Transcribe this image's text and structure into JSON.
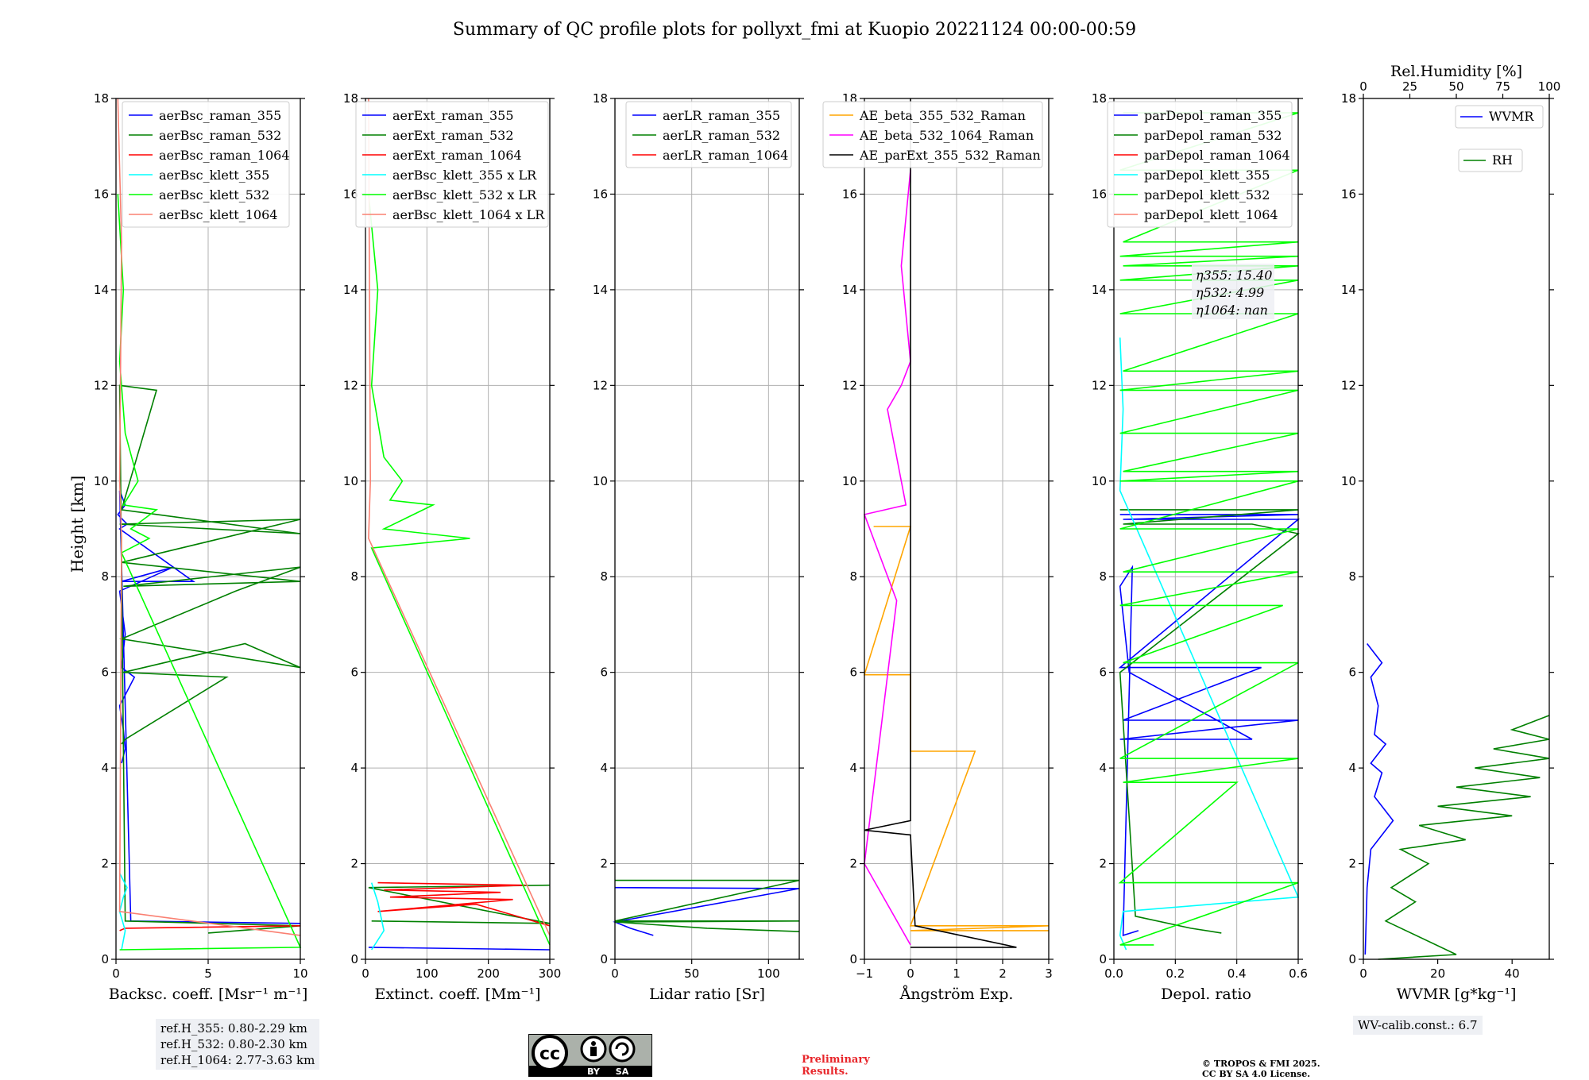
{
  "title": "Summary of QC profile plots for pollyxt_fmi at Kuopio 20221124 00:00-00:59",
  "y_axis": {
    "label": "Height [km]",
    "ticks": [
      "0",
      "2",
      "4",
      "6",
      "8",
      "10",
      "12",
      "14",
      "16",
      "18"
    ]
  },
  "notes": {
    "ref_h": [
      "ref.H_355: 0.80-2.29 km",
      "ref.H_532: 0.80-2.30 km",
      "ref.H_1064: 2.77-3.63 km"
    ],
    "wv_calib": "WV-calib.const.: 6.7",
    "eta": [
      "η355: 15.40",
      "η532: 4.99",
      "η1064: nan"
    ],
    "preliminary": [
      "Preliminary",
      "Results."
    ],
    "copyright": [
      "© TROPOS & FMI 2025.",
      "CC BY SA 4.0 License."
    ],
    "cc_badge": [
      "BY",
      "SA"
    ]
  },
  "colors": {
    "blue": "#0000ff",
    "green": "#008000",
    "red": "#ff0000",
    "cyan": "#00ffff",
    "lime": "#00ff00",
    "salmon": "#fa8072",
    "orange": "#ffa500",
    "magenta": "#ff00ff",
    "black": "#000000"
  },
  "chart_data": [
    {
      "type": "line",
      "id": "bsc",
      "xlabel": "Backsc. coeff. [Msr⁻¹ m⁻¹]",
      "xlim": [
        0,
        10
      ],
      "ylim": [
        0,
        18
      ],
      "grid": true,
      "xticks": [
        "0",
        "5",
        "10"
      ],
      "legend": [
        "aerBsc_raman_355",
        "aerBsc_raman_532",
        "aerBsc_raman_1064",
        "aerBsc_klett_355",
        "aerBsc_klett_532",
        "aerBsc_klett_1064"
      ],
      "series": [
        {
          "name": "aerBsc_raman_355",
          "color": "blue",
          "x": [
            0.3,
            0.5,
            0.4,
            0.2,
            1.0,
            0.3,
            0.5,
            0.2,
            3.1,
            0.3,
            4.2,
            0.2,
            0.6,
            0.1,
            0.5,
            0.2,
            0.8,
            10
          ],
          "y": [
            4.1,
            4.4,
            4.8,
            5.3,
            5.9,
            6.1,
            6.8,
            7.7,
            8.2,
            7.9,
            7.9,
            9.0,
            9.1,
            9.3,
            9.5,
            9.8,
            0.8,
            0.75
          ]
        },
        {
          "name": "aerBsc_raman_532",
          "color": "green",
          "x": [
            0.3,
            0.5,
            6.0,
            0.4,
            7.0,
            10,
            0.3,
            6.5,
            10,
            0.4,
            10,
            0.3,
            10,
            0.2,
            10,
            0.3,
            2.2,
            0.2,
            0.5,
            10,
            5.0
          ],
          "y": [
            4.5,
            4.6,
            5.9,
            6.0,
            6.6,
            6.1,
            6.7,
            7.7,
            8.2,
            7.8,
            7.9,
            8.3,
            9.2,
            9.1,
            8.9,
            9.4,
            11.9,
            12.0,
            0.8,
            0.7,
            0.55
          ]
        },
        {
          "name": "aerBsc_raman_1064",
          "color": "red",
          "x": [
            0.2,
            0.5,
            10
          ],
          "y": [
            0.6,
            0.65,
            0.7
          ]
        },
        {
          "name": "aerBsc_klett_355",
          "color": "cyan",
          "x": [
            0.3,
            0.5,
            0.2,
            0.4,
            0.6,
            0.2
          ],
          "y": [
            0.2,
            0.6,
            1.0,
            1.3,
            1.5,
            1.8
          ]
        },
        {
          "name": "aerBsc_klett_532",
          "color": "lime",
          "x": [
            0.1,
            0.4,
            0.2,
            0.5,
            1.2,
            0.4,
            2.2,
            0.8,
            1.8,
            0.3,
            10,
            0.2
          ],
          "y": [
            16.0,
            14.0,
            12.5,
            11.0,
            10.0,
            9.5,
            9.4,
            9.0,
            8.8,
            8.5,
            0.25,
            0.2
          ]
        },
        {
          "name": "aerBsc_klett_1064",
          "color": "salmon",
          "x": [
            0.1,
            0.3,
            0.2,
            0.3,
            0.2,
            10
          ],
          "y": [
            18,
            15.0,
            10.0,
            8.8,
            1.0,
            0.5
          ]
        }
      ]
    },
    {
      "type": "line",
      "id": "ext",
      "xlabel": "Extinct. coeff. [Mm⁻¹]",
      "xlim": [
        0,
        300
      ],
      "ylim": [
        0,
        18
      ],
      "grid": true,
      "xticks": [
        "0",
        "100",
        "200",
        "300"
      ],
      "legend": [
        "aerExt_raman_355",
        "aerExt_raman_532",
        "aerExt_raman_1064",
        "aerBsc_klett_355 x LR",
        "aerBsc_klett_532 x LR",
        "aerBsc_klett_1064 x LR"
      ],
      "series": [
        {
          "name": "aerExt_raman_355",
          "color": "blue",
          "x": [
            5,
            300
          ],
          "y": [
            0.25,
            0.2
          ]
        },
        {
          "name": "aerExt_raman_532",
          "color": "green",
          "x": [
            10,
            300,
            5,
            300
          ],
          "y": [
            0.8,
            0.75,
            1.5,
            1.55
          ]
        },
        {
          "name": "aerExt_raman_1064",
          "color": "red",
          "x": [
            20,
            260,
            30,
            220,
            40,
            240,
            20,
            180,
            300
          ],
          "y": [
            1.6,
            1.55,
            1.45,
            1.4,
            1.3,
            1.25,
            1.0,
            1.15,
            0.7
          ]
        },
        {
          "name": "aerBsc_klett_355 x LR",
          "color": "cyan",
          "x": [
            10,
            30,
            20,
            10
          ],
          "y": [
            0.2,
            0.6,
            1.2,
            1.6
          ]
        },
        {
          "name": "aerBsc_klett_532 x LR",
          "color": "lime",
          "x": [
            5,
            20,
            10,
            30,
            60,
            40,
            110,
            30,
            170,
            10,
            300
          ],
          "y": [
            16,
            14,
            12,
            10.5,
            10,
            9.6,
            9.5,
            9.0,
            8.8,
            8.6,
            0.3
          ]
        },
        {
          "name": "aerBsc_klett_1064 x LR",
          "color": "salmon",
          "x": [
            5,
            8,
            5,
            300
          ],
          "y": [
            18,
            10,
            8.8,
            0.5
          ]
        }
      ]
    },
    {
      "type": "line",
      "id": "lr",
      "xlabel": "Lidar ratio [Sr]",
      "xlim": [
        0,
        120
      ],
      "ylim": [
        0,
        18
      ],
      "grid": true,
      "xticks": [
        "0",
        "50",
        "100"
      ],
      "legend": [
        "aerLR_raman_355",
        "aerLR_raman_532",
        "aerLR_raman_1064"
      ],
      "series": [
        {
          "name": "aerLR_raman_355",
          "color": "blue",
          "x": [
            0,
            120,
            0,
            10,
            20,
            25
          ],
          "y": [
            1.5,
            1.48,
            0.78,
            0.65,
            0.55,
            0.5
          ]
        },
        {
          "name": "aerLR_raman_532",
          "color": "green",
          "x": [
            0,
            120,
            0,
            120,
            0,
            60,
            120
          ],
          "y": [
            1.65,
            1.65,
            0.8,
            0.8,
            0.78,
            0.65,
            0.58
          ]
        },
        {
          "name": "aerLR_raman_1064",
          "color": "red",
          "x": [],
          "y": []
        }
      ]
    },
    {
      "type": "line",
      "id": "ae",
      "xlabel": "Ångström Exp.",
      "xlim": [
        -1,
        3
      ],
      "ylim": [
        0,
        18
      ],
      "grid": true,
      "xticks": [
        "−1",
        "0",
        "1",
        "2",
        "3"
      ],
      "legend": [
        "AE_beta_355_532_Raman",
        "AE_beta_532_1064_Raman",
        "AE_parExt_355_532_Raman"
      ],
      "series": [
        {
          "name": "AE_beta_355_532_Raman",
          "color": "orange",
          "x": [
            -0.8,
            0,
            -1,
            0,
            0,
            1.4,
            0,
            3,
            0,
            3
          ],
          "y": [
            9.05,
            9.05,
            5.95,
            5.95,
            4.35,
            4.35,
            0.7,
            0.7,
            0.6,
            0.6
          ]
        },
        {
          "name": "AE_beta_532_1064_Raman",
          "color": "magenta",
          "x": [
            0,
            -0.2,
            0,
            -0.2,
            -0.5,
            -0.1,
            -1,
            -0.3,
            -1,
            0
          ],
          "y": [
            16.5,
            14.5,
            12.5,
            12.0,
            11.5,
            9.5,
            9.3,
            7.5,
            2.0,
            0.3
          ]
        },
        {
          "name": "AE_parExt_355_532_Raman",
          "color": "black",
          "x": [
            0,
            0,
            0,
            -1,
            0,
            0.1,
            2.3,
            0
          ],
          "y": [
            18,
            10.5,
            2.9,
            2.7,
            2.6,
            0.7,
            0.25,
            0.25
          ]
        }
      ]
    },
    {
      "type": "line",
      "id": "depol",
      "xlabel": "Depol. ratio",
      "xlim": [
        0.0,
        0.6
      ],
      "ylim": [
        0,
        18
      ],
      "grid": true,
      "xticks": [
        "0.0",
        "0.2",
        "0.4",
        "0.6"
      ],
      "legend": [
        "parDepol_raman_355",
        "parDepol_raman_532",
        "parDepol_raman_1064",
        "parDepol_klett_355",
        "parDepol_klett_532",
        "parDepol_klett_1064"
      ],
      "series": [
        {
          "name": "parDepol_raman_355",
          "color": "blue",
          "x": [
            0.02,
            0.6,
            0.03,
            0.6,
            0.02,
            0.48,
            0.03,
            0.6,
            0.02,
            0.45,
            0.05,
            0.02,
            0.06,
            0.03,
            0.08
          ],
          "y": [
            9.3,
            9.3,
            9.2,
            9.2,
            6.1,
            6.1,
            5.0,
            5.0,
            4.6,
            4.6,
            6.0,
            7.8,
            8.2,
            0.5,
            0.6
          ]
        },
        {
          "name": "parDepol_raman_532",
          "color": "green",
          "x": [
            0.02,
            0.6,
            0.03,
            0.45,
            0.6,
            0.02,
            0.07,
            0.25,
            0.35
          ],
          "y": [
            9.4,
            9.4,
            9.1,
            9.1,
            8.9,
            6.0,
            0.9,
            0.65,
            0.55
          ]
        },
        {
          "name": "parDepol_raman_1064",
          "color": "red",
          "x": [],
          "y": []
        },
        {
          "name": "parDepol_klett_355",
          "color": "cyan",
          "x": [
            0.02,
            0.03,
            0.02,
            0.6,
            0.03,
            0.02,
            0.04
          ],
          "y": [
            13.0,
            11.5,
            9.8,
            1.3,
            1.0,
            0.5,
            0.2
          ]
        },
        {
          "name": "parDepol_klett_532",
          "color": "lime",
          "x": [
            0.03,
            0.6,
            0.02,
            0.6,
            0.03,
            0.6,
            0.02,
            0.6,
            0.03,
            0.6,
            0.02,
            0.6,
            0.02,
            0.6,
            0.03,
            0.6,
            0.02,
            0.6,
            0.02,
            0.6,
            0.03,
            0.6,
            0.02,
            0.6,
            0.02,
            0.6,
            0.03,
            0.6,
            0.02,
            0.55,
            0.03,
            0.6,
            0.02,
            0.6,
            0.03,
            0.4,
            0.02,
            0.6,
            0.02,
            0.13
          ],
          "y": [
            17.7,
            17.7,
            16.5,
            16.5,
            15.0,
            15.0,
            14.7,
            14.7,
            14.5,
            14.5,
            14.2,
            14.2,
            13.5,
            13.5,
            12.3,
            12.3,
            11.9,
            11.9,
            11.0,
            11.0,
            10.2,
            10.2,
            10.0,
            10.0,
            9.0,
            9.0,
            8.1,
            8.1,
            7.4,
            7.4,
            6.2,
            6.2,
            4.2,
            4.2,
            3.7,
            3.7,
            1.6,
            1.6,
            0.3,
            0.3
          ]
        },
        {
          "name": "parDepol_klett_1064",
          "color": "salmon",
          "x": [],
          "y": []
        }
      ]
    },
    {
      "type": "line",
      "id": "wvmr",
      "xlabel": "WVMR [g*kg⁻¹]",
      "xlim": [
        0,
        50
      ],
      "ylim": [
        0,
        18
      ],
      "grid": false,
      "xticks": [
        "0",
        "20",
        "40"
      ],
      "top_axis": {
        "label": "Rel.Humidity [%]",
        "lim": [
          0,
          100
        ],
        "ticks": [
          "0",
          "25",
          "50",
          "75",
          "100"
        ]
      },
      "legend": [
        "WVMR",
        "RH"
      ],
      "series": [
        {
          "name": "WVMR",
          "color": "blue",
          "x": [
            1,
            3,
            5,
            2,
            4,
            3,
            6,
            2,
            5,
            3,
            8,
            2,
            1,
            0.5
          ],
          "y": [
            6.6,
            6.4,
            6.2,
            5.9,
            5.3,
            4.7,
            4.5,
            4.1,
            3.9,
            3.4,
            2.9,
            2.3,
            1.5,
            0.1
          ]
        },
        {
          "name": "RH",
          "color": "green",
          "x": [
            100,
            80,
            100,
            70,
            100,
            60,
            95,
            50,
            90,
            40,
            80,
            30,
            55,
            20,
            35,
            15,
            28,
            12,
            50,
            8
          ],
          "y": [
            5.1,
            4.8,
            4.6,
            4.4,
            4.2,
            4.0,
            3.8,
            3.6,
            3.4,
            3.2,
            3.0,
            2.8,
            2.5,
            2.3,
            2.0,
            1.5,
            1.2,
            0.8,
            0.1,
            0.0
          ]
        }
      ]
    }
  ]
}
